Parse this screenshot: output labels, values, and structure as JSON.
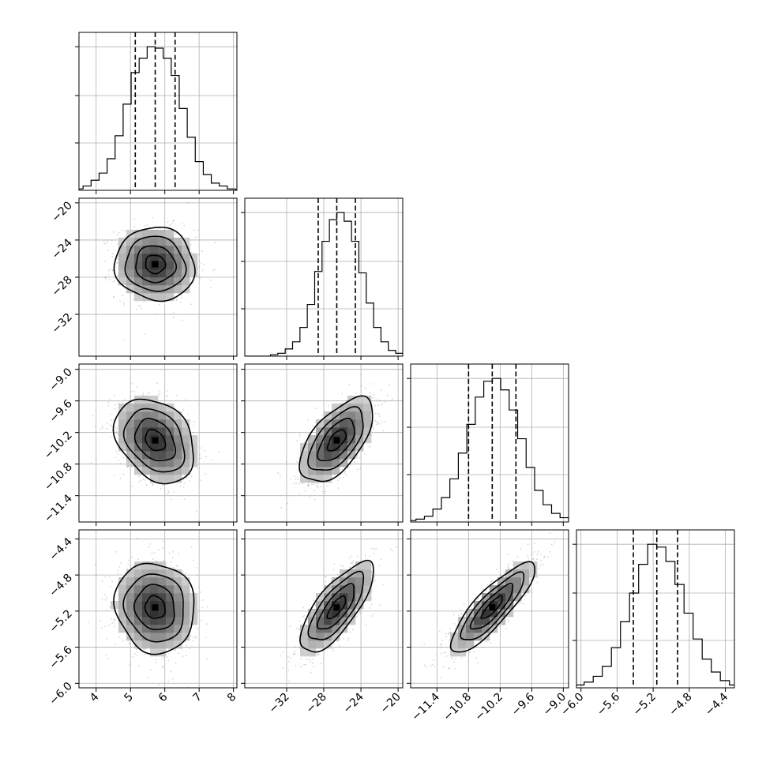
{
  "chart_data": {
    "type": "corner",
    "title": "",
    "grid": true,
    "parameters": [
      {
        "index": 0,
        "mean": 5.72,
        "std": 0.58,
        "range": [
          3.5,
          8.1
        ],
        "ticks": [
          4,
          5,
          6,
          7,
          8
        ],
        "tick_labels": [
          "4",
          "5",
          "6",
          "7",
          "8"
        ],
        "quantiles": [
          5.14,
          5.72,
          6.3
        ],
        "histogram_counts": [
          1,
          3,
          7,
          12,
          22,
          38,
          60,
          82,
          92,
          100,
          99,
          92,
          80,
          57,
          37,
          20,
          11,
          5,
          3,
          1
        ]
      },
      {
        "index": 1,
        "mean": -26.6,
        "std": 1.97,
        "range": [
          -36.5,
          -19.5
        ],
        "ticks": [
          -32,
          -28,
          -24,
          -20
        ],
        "tick_labels": [
          "−32",
          "−28",
          "−24",
          "−20"
        ],
        "quantiles": [
          -28.6,
          -26.6,
          -24.6
        ],
        "histogram_counts": [
          0,
          1,
          2,
          5,
          10,
          20,
          36,
          59,
          80,
          95,
          100,
          94,
          80,
          58,
          37,
          20,
          10,
          4,
          2,
          1
        ]
      },
      {
        "index": 2,
        "mean": -10.35,
        "std": 0.4,
        "range": [
          -11.9,
          -8.9
        ],
        "ticks": [
          -11.4,
          -10.8,
          -10.2,
          -9.6,
          -9.0
        ],
        "tick_labels": [
          "−11.4",
          "−10.8",
          "−10.2",
          "−9.6",
          "−9.0"
        ],
        "quantiles": [
          -10.8,
          -10.35,
          -9.9
        ],
        "histogram_counts": [
          1,
          2,
          4,
          9,
          17,
          30,
          48,
          68,
          87,
          98,
          100,
          92,
          78,
          58,
          38,
          22,
          12,
          6,
          3,
          1
        ]
      },
      {
        "index": 3,
        "mean": -5.16,
        "std": 0.25,
        "range": [
          -6.05,
          -4.3
        ],
        "ticks": [
          -6.0,
          -5.6,
          -5.2,
          -4.8,
          -4.4
        ],
        "tick_labels": [
          "−6.0",
          "−5.6",
          "−5.2",
          "−4.8",
          "−4.4"
        ],
        "quantiles": [
          -5.42,
          -5.16,
          -4.93
        ],
        "histogram_counts": [
          1,
          2,
          4,
          8,
          15,
          28,
          46,
          66,
          86,
          100,
          98,
          88,
          72,
          52,
          34,
          20,
          11,
          5,
          2,
          1
        ]
      }
    ],
    "correlations": [
      [
        1.0,
        -0.05,
        -0.3,
        -0.08
      ],
      [
        -0.05,
        1.0,
        0.6,
        0.75
      ],
      [
        -0.3,
        0.6,
        1.0,
        0.85
      ],
      [
        -0.08,
        0.75,
        0.85,
        1.0
      ]
    ],
    "contour_levels_sigma": [
      0.5,
      1.0,
      1.5,
      2.0
    ],
    "colors": {
      "ink": "#000000",
      "grid": "#b0b0b0",
      "samples": "#6b6b6b"
    }
  }
}
